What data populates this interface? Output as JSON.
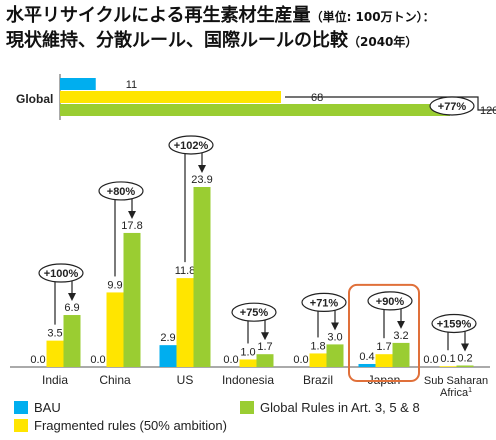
{
  "title_line1": "水平リサイクルによる再生素材生産量",
  "title_line1_small": "（単位: 100万トン）：",
  "title_line2": "現状維持、分散ルール、国際ルールの比較",
  "title_line2_small": "（2040年）",
  "colors": {
    "bau": "#00AEEF",
    "fragmented": "#FFE500",
    "global": "#9ACD32",
    "highlight": "#E0703A"
  },
  "chart_data": [
    {
      "type": "bar",
      "orientation": "horizontal",
      "categories": [
        "Global"
      ],
      "series": [
        {
          "name": "BAU",
          "values": [
            11
          ]
        },
        {
          "name": "Fragmented rules (50% ambition)",
          "values": [
            68
          ]
        },
        {
          "name": "Global Rules in Art. 3, 5 & 8",
          "values": [
            120
          ]
        }
      ],
      "annotations": [
        {
          "text": "+77%"
        }
      ],
      "xlim": [
        0,
        120
      ]
    },
    {
      "type": "bar",
      "categories": [
        "India",
        "China",
        "US",
        "Indonesia",
        "Brazil",
        "Japan",
        "Sub Saharan Africa"
      ],
      "category_superscripts": {
        "Sub Saharan Africa": "1"
      },
      "highlighted_category": "Japan",
      "series": [
        {
          "name": "BAU",
          "values": [
            0.0,
            0.0,
            2.9,
            0.0,
            0.0,
            0.4,
            0.0
          ]
        },
        {
          "name": "Fragmented rules (50% ambition)",
          "values": [
            3.5,
            9.9,
            11.8,
            1.0,
            1.8,
            1.7,
            0.1
          ]
        },
        {
          "name": "Global Rules in Art. 3, 5 & 8",
          "values": [
            6.9,
            17.8,
            23.9,
            1.7,
            3.0,
            3.2,
            0.2
          ]
        }
      ],
      "value_labels": [
        [
          "0.0",
          "3.5",
          "6.9"
        ],
        [
          "0.0",
          "9.9",
          "17.8"
        ],
        [
          "2.9",
          "11.8",
          "23.9"
        ],
        [
          "0.0",
          "1.0",
          "1.7"
        ],
        [
          "0.0",
          "1.8",
          "3.0"
        ],
        [
          "0.4",
          "1.7",
          "3.2"
        ],
        [
          "0.0",
          "0.1",
          "0.2"
        ]
      ],
      "annotations": [
        "+100%",
        "+80%",
        "+102%",
        "+75%",
        "+71%",
        "+90%",
        "+159%"
      ],
      "ylim": [
        0,
        24
      ]
    }
  ],
  "legend": [
    {
      "label": "BAU",
      "color_key": "bau"
    },
    {
      "label": "Global Rules in Art. 3, 5 & 8",
      "color_key": "global"
    },
    {
      "label": "Fragmented rules (50% ambition)",
      "color_key": "fragmented"
    }
  ]
}
